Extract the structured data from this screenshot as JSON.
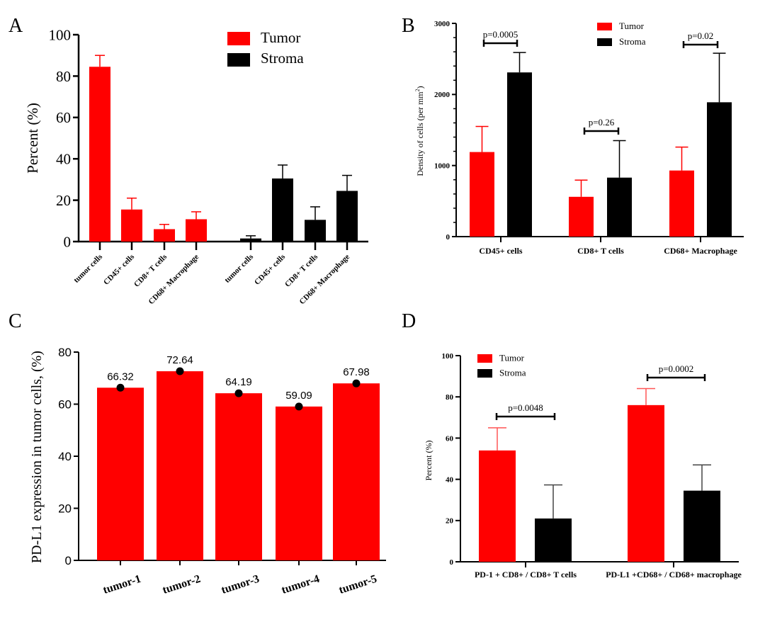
{
  "colors": {
    "tumor": "#ff0000",
    "stroma": "#000000"
  },
  "chart_data": [
    {
      "panel": "A",
      "type": "bar",
      "ylabel": "Percent (%)",
      "ylim": [
        0,
        100
      ],
      "yticks": [
        0,
        20,
        40,
        60,
        80,
        100
      ],
      "legend": {
        "placement": "top-right",
        "entries": [
          "Tumor",
          "Stroma"
        ]
      },
      "groups": [
        {
          "series": "Tumor",
          "categories": [
            "tumor cells",
            "CD45+ cells",
            "CD8+ T cells",
            "CD68+ Macrophage"
          ],
          "values": [
            84.5,
            15.5,
            6,
            10.8
          ],
          "error_upper": [
            90,
            21,
            8.3,
            14.4
          ]
        },
        {
          "series": "Stroma",
          "categories": [
            "tumor cells",
            "CD45+ cells",
            "CD8+ T cells",
            "CD68+ Macrophage"
          ],
          "values": [
            1.5,
            30.5,
            10.5,
            24.5
          ],
          "error_upper": [
            2.8,
            37,
            16.8,
            32
          ]
        }
      ]
    },
    {
      "panel": "B",
      "type": "bar",
      "ylabel": "Density of cells (per mm",
      "ylabel_sup": "2",
      "ylabel_end": ")",
      "ylim": [
        0,
        3000
      ],
      "yticks": [
        0,
        1000,
        2000,
        3000
      ],
      "legend": {
        "placement": "top-center",
        "entries": [
          "Tumor",
          "Stroma"
        ]
      },
      "categories": [
        "CD45+ cells",
        "CD8+ T cells",
        "CD68+ Macrophage"
      ],
      "series": [
        {
          "name": "Tumor",
          "values": [
            1190,
            560,
            930
          ],
          "error_upper": [
            1550,
            795,
            1260
          ]
        },
        {
          "name": "Stroma",
          "values": [
            2310,
            830,
            1890
          ],
          "error_upper": [
            2590,
            1350,
            2580
          ]
        }
      ],
      "annotations": [
        "p=0.0005",
        "p=0.26",
        "p=0.02"
      ]
    },
    {
      "panel": "C",
      "type": "bar",
      "ylabel": "PD-L1 expression in tumor cells, (%)",
      "ylim": [
        0,
        80
      ],
      "yticks": [
        0,
        20,
        40,
        60,
        80
      ],
      "categories": [
        "tumor-1",
        "tumor-2",
        "tumor-3",
        "tumor-4",
        "tumor-5"
      ],
      "values": [
        66.32,
        72.64,
        64.19,
        59.09,
        67.98
      ],
      "data_labels": [
        "66.32",
        "72.64",
        "64.19",
        "59.09",
        "67.98"
      ]
    },
    {
      "panel": "D",
      "type": "bar",
      "ylabel": "Percent (%)",
      "ylim": [
        0,
        100
      ],
      "yticks": [
        0,
        20,
        40,
        60,
        80,
        100
      ],
      "legend": {
        "placement": "top-left",
        "entries": [
          "Tumor",
          "Stroma"
        ]
      },
      "categories": [
        "PD-1 + CD8+ / CD8+ T cells",
        "PD-L1 +CD68+  / CD68+ macrophage"
      ],
      "series": [
        {
          "name": "Tumor",
          "values": [
            54,
            76
          ],
          "error_upper": [
            65,
            84
          ]
        },
        {
          "name": "Stroma",
          "values": [
            21,
            34.5
          ],
          "error_upper": [
            37.3,
            47
          ]
        }
      ],
      "annotations": [
        "p=0.0048",
        "p=0.0002"
      ]
    }
  ]
}
